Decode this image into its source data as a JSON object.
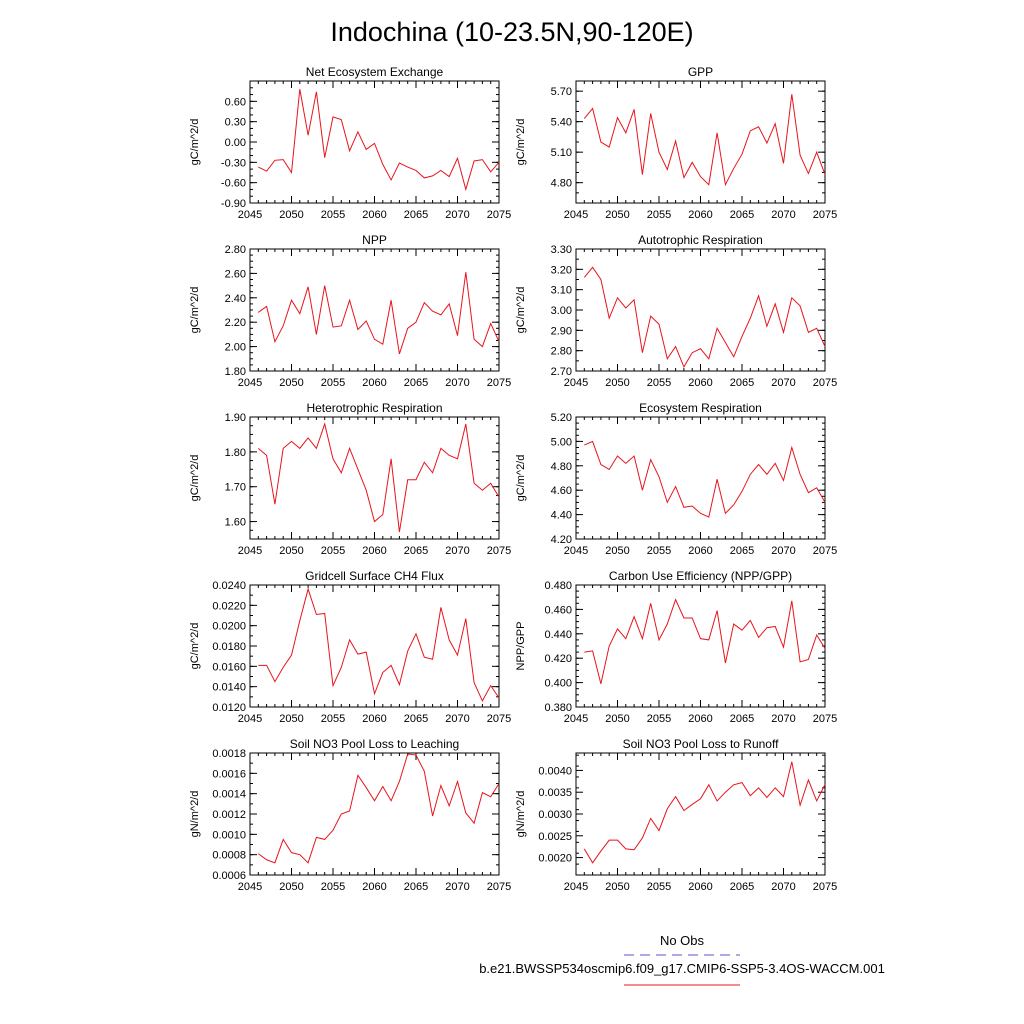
{
  "title": "Indochina (10-23.5N,90-120E)",
  "colors": {
    "model_line": "#e8141c",
    "obs_line": "#5555cc",
    "axis": "#000000"
  },
  "legend": {
    "obs_label": "No Obs",
    "model_label": "b.e21.BWSSP534oscmip6.f09_g17.CMIP6-SSP5-3.4OS-WACCM.001"
  },
  "chart_data": [
    {
      "type": "line",
      "title": "Net Ecosystem Exchange",
      "ylabel": "gC/m^2/d",
      "xlim": [
        2045,
        2075
      ],
      "xticks": [
        2045,
        2050,
        2055,
        2060,
        2065,
        2070,
        2075
      ],
      "ylim": [
        -0.9,
        0.9
      ],
      "yticks": [
        "0.60",
        "0.30",
        "0.00",
        "-0.30",
        "-0.60",
        "-0.90"
      ],
      "yminor": 0.1,
      "x": [
        2046,
        2047,
        2048,
        2049,
        2050,
        2051,
        2052,
        2053,
        2054,
        2055,
        2056,
        2057,
        2058,
        2059,
        2060,
        2061,
        2062,
        2063,
        2064,
        2065,
        2066,
        2067,
        2068,
        2069,
        2070,
        2071,
        2072,
        2073,
        2074,
        2075
      ],
      "values": [
        -0.37,
        -0.43,
        -0.27,
        -0.26,
        -0.45,
        0.78,
        0.1,
        0.74,
        -0.23,
        0.37,
        0.33,
        -0.13,
        0.15,
        -0.11,
        -0.02,
        -0.33,
        -0.56,
        -0.31,
        -0.37,
        -0.42,
        -0.53,
        -0.5,
        -0.42,
        -0.51,
        -0.24,
        -0.7,
        -0.28,
        -0.26,
        -0.44,
        -0.3
      ]
    },
    {
      "type": "line",
      "title": "GPP",
      "ylabel": "gC/m^2/d",
      "xlim": [
        2045,
        2075
      ],
      "xticks": [
        2045,
        2050,
        2055,
        2060,
        2065,
        2070,
        2075
      ],
      "ylim": [
        4.6,
        5.8
      ],
      "yticks": [
        "5.70",
        "5.40",
        "5.10",
        "4.80"
      ],
      "yminor": 0.1,
      "x": [
        2046,
        2047,
        2048,
        2049,
        2050,
        2051,
        2052,
        2053,
        2054,
        2055,
        2056,
        2057,
        2058,
        2059,
        2060,
        2061,
        2062,
        2063,
        2064,
        2065,
        2066,
        2067,
        2068,
        2069,
        2070,
        2071,
        2072,
        2073,
        2074,
        2075
      ],
      "values": [
        5.43,
        5.53,
        5.2,
        5.15,
        5.44,
        5.29,
        5.52,
        4.88,
        5.48,
        5.1,
        4.93,
        5.21,
        4.85,
        5.0,
        4.86,
        4.78,
        5.29,
        4.78,
        4.94,
        5.08,
        5.31,
        5.35,
        5.19,
        5.38,
        4.99,
        5.67,
        5.07,
        4.89,
        5.1,
        4.88
      ]
    },
    {
      "type": "line",
      "title": "NPP",
      "ylabel": "gC/m^2/d",
      "xlim": [
        2045,
        2075
      ],
      "xticks": [
        2045,
        2050,
        2055,
        2060,
        2065,
        2070,
        2075
      ],
      "ylim": [
        1.8,
        2.8
      ],
      "yticks": [
        "2.80",
        "2.60",
        "2.40",
        "2.20",
        "2.00",
        "1.80"
      ],
      "yminor": 0.05,
      "x": [
        2046,
        2047,
        2048,
        2049,
        2050,
        2051,
        2052,
        2053,
        2054,
        2055,
        2056,
        2057,
        2058,
        2059,
        2060,
        2061,
        2062,
        2063,
        2064,
        2065,
        2066,
        2067,
        2068,
        2069,
        2070,
        2071,
        2072,
        2073,
        2074,
        2075
      ],
      "values": [
        2.28,
        2.33,
        2.04,
        2.17,
        2.38,
        2.27,
        2.49,
        2.1,
        2.5,
        2.16,
        2.17,
        2.38,
        2.14,
        2.21,
        2.06,
        2.02,
        2.38,
        1.94,
        2.15,
        2.2,
        2.36,
        2.29,
        2.26,
        2.35,
        2.09,
        2.61,
        2.06,
        2.0,
        2.19,
        2.04
      ]
    },
    {
      "type": "line",
      "title": "Autotrophic Respiration",
      "ylabel": "gC/m^2/d",
      "xlim": [
        2045,
        2075
      ],
      "xticks": [
        2045,
        2050,
        2055,
        2060,
        2065,
        2070,
        2075
      ],
      "ylim": [
        2.7,
        3.3
      ],
      "yticks": [
        "3.30",
        "3.20",
        "3.10",
        "3.00",
        "2.90",
        "2.80",
        "2.70"
      ],
      "yminor": 0.05,
      "x": [
        2046,
        2047,
        2048,
        2049,
        2050,
        2051,
        2052,
        2053,
        2054,
        2055,
        2056,
        2057,
        2058,
        2059,
        2060,
        2061,
        2062,
        2063,
        2064,
        2065,
        2066,
        2067,
        2068,
        2069,
        2070,
        2071,
        2072,
        2073,
        2074,
        2075
      ],
      "values": [
        3.16,
        3.21,
        3.15,
        2.96,
        3.06,
        3.01,
        3.05,
        2.79,
        2.97,
        2.93,
        2.76,
        2.82,
        2.72,
        2.79,
        2.81,
        2.76,
        2.91,
        2.84,
        2.77,
        2.87,
        2.96,
        3.07,
        2.92,
        3.03,
        2.89,
        3.06,
        3.02,
        2.89,
        2.91,
        2.82
      ]
    },
    {
      "type": "line",
      "title": "Heterotrophic Respiration",
      "ylabel": "gC/m^2/d",
      "xlim": [
        2045,
        2075
      ],
      "xticks": [
        2045,
        2050,
        2055,
        2060,
        2065,
        2070,
        2075
      ],
      "ylim": [
        1.55,
        1.9
      ],
      "yticks": [
        "1.90",
        "1.80",
        "1.70",
        "1.60"
      ],
      "yminor": 0.025,
      "x": [
        2046,
        2047,
        2048,
        2049,
        2050,
        2051,
        2052,
        2053,
        2054,
        2055,
        2056,
        2057,
        2058,
        2059,
        2060,
        2061,
        2062,
        2063,
        2064,
        2065,
        2066,
        2067,
        2068,
        2069,
        2070,
        2071,
        2072,
        2073,
        2074,
        2075
      ],
      "values": [
        1.81,
        1.79,
        1.65,
        1.81,
        1.83,
        1.81,
        1.84,
        1.81,
        1.88,
        1.78,
        1.74,
        1.81,
        1.75,
        1.69,
        1.6,
        1.62,
        1.78,
        1.57,
        1.72,
        1.72,
        1.77,
        1.74,
        1.81,
        1.79,
        1.78,
        1.88,
        1.71,
        1.69,
        1.71,
        1.67
      ]
    },
    {
      "type": "line",
      "title": "Ecosystem Respiration",
      "ylabel": "gC/m^2/d",
      "xlim": [
        2045,
        2075
      ],
      "xticks": [
        2045,
        2050,
        2055,
        2060,
        2065,
        2070,
        2075
      ],
      "ylim": [
        4.2,
        5.2
      ],
      "yticks": [
        "5.20",
        "5.00",
        "4.80",
        "4.60",
        "4.40",
        "4.20"
      ],
      "yminor": 0.05,
      "x": [
        2046,
        2047,
        2048,
        2049,
        2050,
        2051,
        2052,
        2053,
        2054,
        2055,
        2056,
        2057,
        2058,
        2059,
        2060,
        2061,
        2062,
        2063,
        2064,
        2065,
        2066,
        2067,
        2068,
        2069,
        2070,
        2071,
        2072,
        2073,
        2074,
        2075
      ],
      "values": [
        4.97,
        5.0,
        4.81,
        4.77,
        4.88,
        4.82,
        4.88,
        4.6,
        4.85,
        4.71,
        4.5,
        4.63,
        4.46,
        4.47,
        4.41,
        4.38,
        4.69,
        4.41,
        4.48,
        4.59,
        4.73,
        4.81,
        4.73,
        4.82,
        4.68,
        4.95,
        4.73,
        4.58,
        4.62,
        4.5
      ]
    },
    {
      "type": "line",
      "title": "Gridcell Surface CH4 Flux",
      "ylabel": "gC/m^2/d",
      "xlim": [
        2045,
        2075
      ],
      "xticks": [
        2045,
        2050,
        2055,
        2060,
        2065,
        2070,
        2075
      ],
      "ylim": [
        0.012,
        0.024
      ],
      "yticks": [
        "0.0240",
        "0.0220",
        "0.0200",
        "0.0180",
        "0.0160",
        "0.0140",
        "0.0120"
      ],
      "yminor": 0.001,
      "x": [
        2046,
        2047,
        2048,
        2049,
        2050,
        2051,
        2052,
        2053,
        2054,
        2055,
        2056,
        2057,
        2058,
        2059,
        2060,
        2061,
        2062,
        2063,
        2064,
        2065,
        2066,
        2067,
        2068,
        2069,
        2070,
        2071,
        2072,
        2073,
        2074,
        2075
      ],
      "values": [
        0.0161,
        0.0161,
        0.0145,
        0.0159,
        0.0171,
        0.0205,
        0.0236,
        0.0211,
        0.0212,
        0.0141,
        0.0159,
        0.0186,
        0.0172,
        0.0174,
        0.0133,
        0.0154,
        0.0161,
        0.0142,
        0.0175,
        0.0192,
        0.0169,
        0.0167,
        0.0218,
        0.0186,
        0.0171,
        0.0207,
        0.0144,
        0.0126,
        0.0141,
        0.0129
      ]
    },
    {
      "type": "line",
      "title": "Carbon Use Efficiency (NPP/GPP)",
      "ylabel": "NPP/GPP",
      "xlim": [
        2045,
        2075
      ],
      "xticks": [
        2045,
        2050,
        2055,
        2060,
        2065,
        2070,
        2075
      ],
      "ylim": [
        0.38,
        0.48
      ],
      "yticks": [
        "0.480",
        "0.460",
        "0.440",
        "0.420",
        "0.400",
        "0.380"
      ],
      "yminor": 0.005,
      "x": [
        2046,
        2047,
        2048,
        2049,
        2050,
        2051,
        2052,
        2053,
        2054,
        2055,
        2056,
        2057,
        2058,
        2059,
        2060,
        2061,
        2062,
        2063,
        2064,
        2065,
        2066,
        2067,
        2068,
        2069,
        2070,
        2071,
        2072,
        2073,
        2074,
        2075
      ],
      "values": [
        0.425,
        0.426,
        0.399,
        0.43,
        0.444,
        0.436,
        0.454,
        0.436,
        0.465,
        0.435,
        0.448,
        0.468,
        0.453,
        0.453,
        0.436,
        0.435,
        0.459,
        0.416,
        0.448,
        0.443,
        0.451,
        0.437,
        0.445,
        0.446,
        0.429,
        0.467,
        0.417,
        0.419,
        0.439,
        0.428
      ]
    },
    {
      "type": "line",
      "title": "Soil NO3 Pool Loss to Leaching",
      "ylabel": "gN/m^2/d",
      "xlim": [
        2045,
        2075
      ],
      "xticks": [
        2045,
        2050,
        2055,
        2060,
        2065,
        2070,
        2075
      ],
      "ylim": [
        0.0006,
        0.0018
      ],
      "yticks": [
        "0.0018",
        "0.0016",
        "0.0014",
        "0.0012",
        "0.0010",
        "0.0008",
        "0.0006"
      ],
      "yminor": 0.0001,
      "x": [
        2046,
        2047,
        2048,
        2049,
        2050,
        2051,
        2052,
        2053,
        2054,
        2055,
        2056,
        2057,
        2058,
        2059,
        2060,
        2061,
        2062,
        2063,
        2064,
        2065,
        2066,
        2067,
        2068,
        2069,
        2070,
        2071,
        2072,
        2073,
        2074,
        2075
      ],
      "values": [
        0.00081,
        0.00075,
        0.00072,
        0.00095,
        0.00082,
        0.0008,
        0.00072,
        0.00097,
        0.00095,
        0.00104,
        0.0012,
        0.00123,
        0.00158,
        0.00146,
        0.00133,
        0.00147,
        0.00133,
        0.00152,
        0.00179,
        0.00178,
        0.00162,
        0.00118,
        0.00148,
        0.00128,
        0.00152,
        0.00121,
        0.00111,
        0.00141,
        0.00137,
        0.0015
      ]
    },
    {
      "type": "line",
      "title": "Soil NO3 Pool Loss to Runoff",
      "ylabel": "gN/m^2/d",
      "xlim": [
        2045,
        2075
      ],
      "xticks": [
        2045,
        2050,
        2055,
        2060,
        2065,
        2070,
        2075
      ],
      "ylim": [
        0.0016,
        0.0044
      ],
      "yticks": [
        "0.0040",
        "0.0035",
        "0.0030",
        "0.0025",
        "0.0020"
      ],
      "yminor": 0.00025,
      "x": [
        2046,
        2047,
        2048,
        2049,
        2050,
        2051,
        2052,
        2053,
        2054,
        2055,
        2056,
        2057,
        2058,
        2059,
        2060,
        2061,
        2062,
        2063,
        2064,
        2065,
        2066,
        2067,
        2068,
        2069,
        2070,
        2071,
        2072,
        2073,
        2074,
        2075
      ],
      "values": [
        0.0022,
        0.00188,
        0.00215,
        0.0024,
        0.0024,
        0.0022,
        0.00218,
        0.00245,
        0.0029,
        0.00262,
        0.00312,
        0.0034,
        0.00308,
        0.00322,
        0.00335,
        0.00367,
        0.0033,
        0.0035,
        0.00367,
        0.00372,
        0.00342,
        0.0036,
        0.00338,
        0.0036,
        0.0034,
        0.0042,
        0.0032,
        0.00378,
        0.0033,
        0.00368
      ]
    }
  ]
}
